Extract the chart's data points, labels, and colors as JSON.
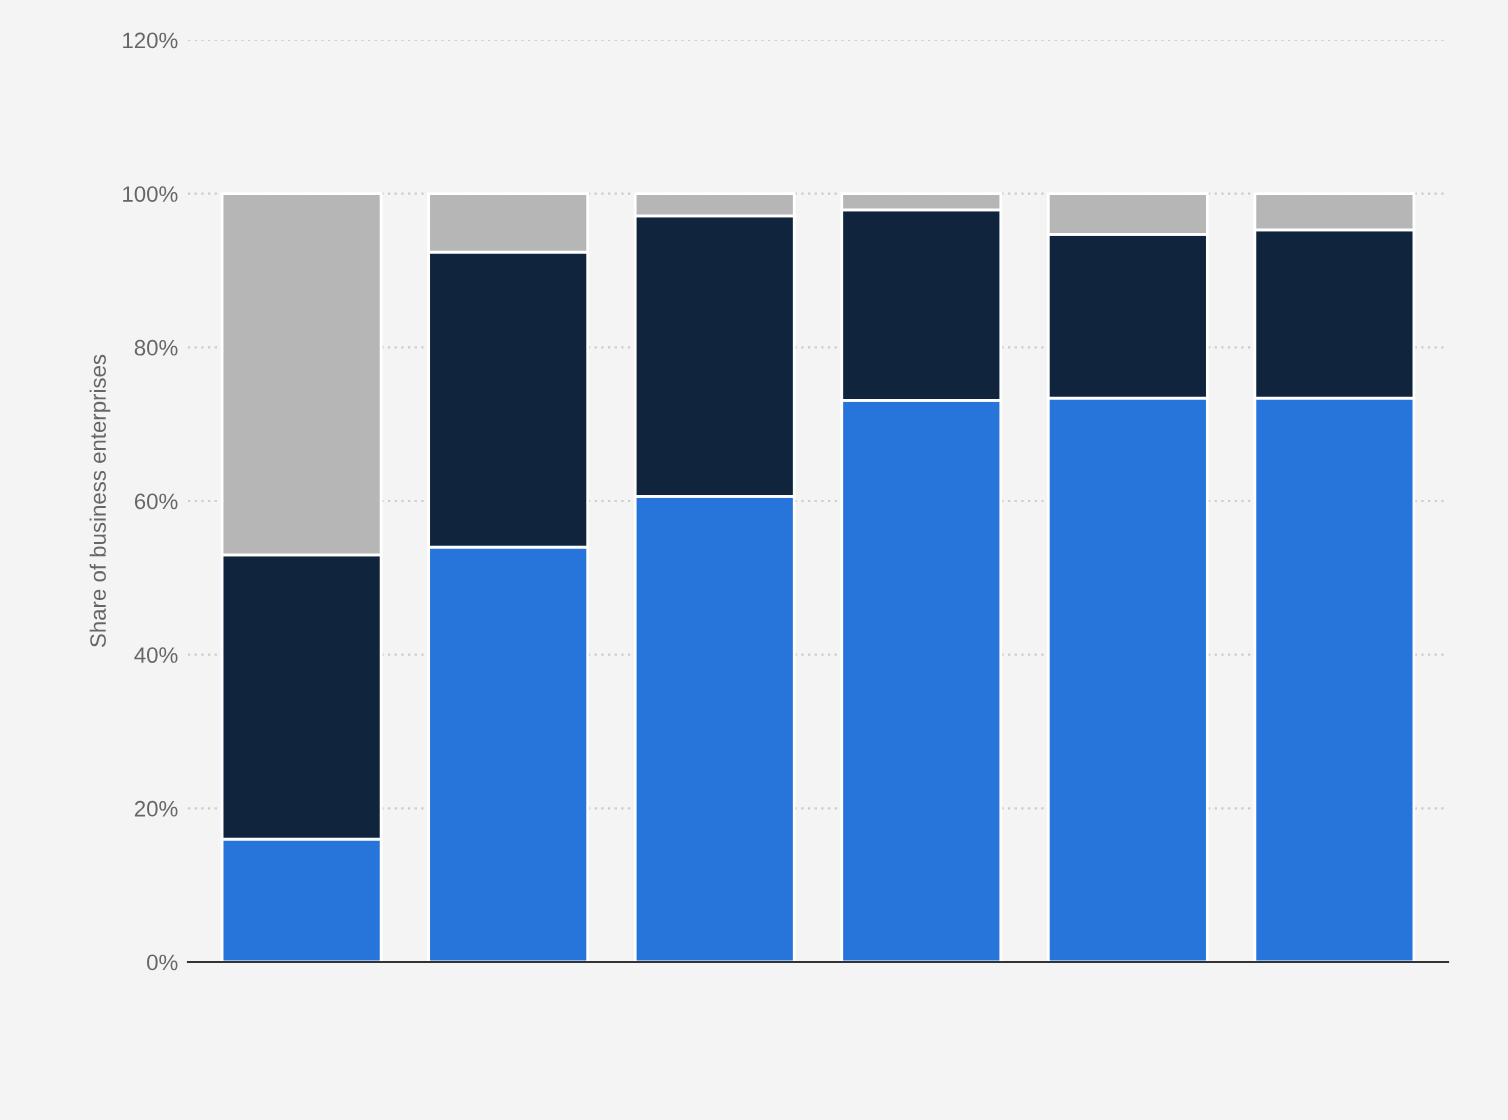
{
  "chart_data": {
    "type": "bar",
    "stacked": true,
    "ylabel": "Share of business enterprises",
    "categories": [
      null,
      null,
      null,
      null,
      null,
      null
    ],
    "series": [
      {
        "color": "#2775db",
        "values": [
          16,
          54,
          60.6,
          73.1,
          73.4,
          73.4
        ]
      },
      {
        "color": "#10253d",
        "values": [
          37,
          38.4,
          36.5,
          24.8,
          21.3,
          21.9
        ]
      },
      {
        "color": "#b6b6b6",
        "values": [
          47,
          7.6,
          2.9,
          2.1,
          5.3,
          4.7
        ]
      }
    ],
    "ylim": [
      0,
      120
    ],
    "yticks": [
      {
        "value": 0,
        "label": "0%"
      },
      {
        "value": 20,
        "label": "20%"
      },
      {
        "value": 40,
        "label": "40%"
      },
      {
        "value": 60,
        "label": "60%"
      },
      {
        "value": 80,
        "label": "80%"
      },
      {
        "value": 100,
        "label": "100%"
      },
      {
        "value": 120,
        "label": "120%"
      }
    ],
    "grid": "y"
  }
}
